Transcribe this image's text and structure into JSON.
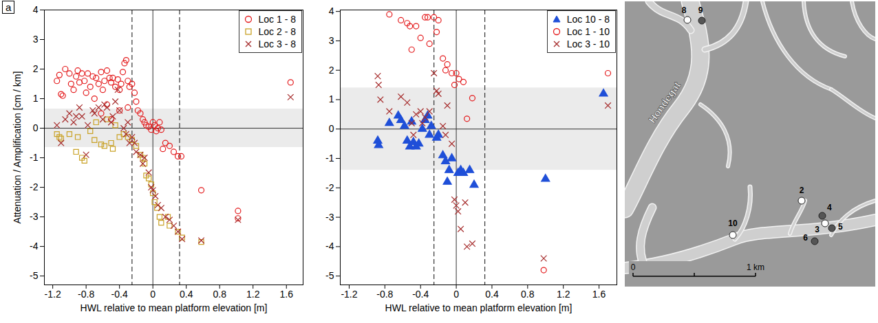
{
  "chart_data": [
    {
      "type": "scatter",
      "panel_label": "a",
      "x_label": "HWL relative to mean platform elevation [m]",
      "y_label": "Attenuation / Amplification [cm / km]",
      "xlim": [
        -1.3,
        1.8
      ],
      "xticks": [
        -1.2,
        -0.8,
        -0.4,
        0,
        0.4,
        0.8,
        1.2,
        1.6
      ],
      "ylim": [
        -5.3,
        4
      ],
      "yticks": [
        -5,
        -4,
        -3,
        -2,
        -1,
        0,
        1,
        2,
        3,
        4
      ],
      "band": [
        -0.65,
        0.65
      ],
      "vlines": [
        {
          "value": -0.25,
          "line_style": "dashed"
        },
        {
          "value": 0,
          "line_style": "solid"
        },
        {
          "value": 0.32,
          "line_style": "dashed"
        }
      ],
      "hlines": [
        {
          "value": 0,
          "line_style": "solid"
        }
      ],
      "legend": "top right",
      "series": [
        {
          "name": "Loc 1 - 8",
          "color": "#e41a1c",
          "marker": "open_circle",
          "values": [
            [
              -1.15,
              1.6
            ],
            [
              -1.12,
              1.8
            ],
            [
              -1.1,
              1.15
            ],
            [
              -1.08,
              1.1
            ],
            [
              -1.05,
              2.0
            ],
            [
              -1.0,
              1.85
            ],
            [
              -0.98,
              1.5
            ],
            [
              -0.95,
              1.3
            ],
            [
              -0.92,
              1.75
            ],
            [
              -0.9,
              1.95
            ],
            [
              -0.88,
              1.55
            ],
            [
              -0.85,
              1.85
            ],
            [
              -0.82,
              1.6
            ],
            [
              -0.8,
              1.2
            ],
            [
              -0.78,
              1.85
            ],
            [
              -0.75,
              1.4
            ],
            [
              -0.72,
              1.75
            ],
            [
              -0.7,
              1.0
            ],
            [
              -0.68,
              1.7
            ],
            [
              -0.65,
              1.5
            ],
            [
              -0.62,
              1.9
            ],
            [
              -0.62,
              0.5
            ],
            [
              -0.6,
              1.3
            ],
            [
              -0.58,
              1.6
            ],
            [
              -0.55,
              1.95
            ],
            [
              -0.55,
              0.8
            ],
            [
              -0.52,
              1.7
            ],
            [
              -0.5,
              1.55
            ],
            [
              -0.5,
              0.3
            ],
            [
              -0.48,
              1.7
            ],
            [
              -0.45,
              1.4
            ],
            [
              -0.42,
              1.65
            ],
            [
              -0.4,
              1.3
            ],
            [
              -0.4,
              0.6
            ],
            [
              -0.38,
              1.5
            ],
            [
              -0.36,
              1.9
            ],
            [
              -0.34,
              2.2
            ],
            [
              -0.32,
              2.3
            ],
            [
              -0.3,
              1.6
            ],
            [
              -0.3,
              0.7
            ],
            [
              -0.28,
              1.4
            ],
            [
              -0.25,
              1.5
            ],
            [
              -0.22,
              1.2
            ],
            [
              -0.2,
              0.9
            ],
            [
              -0.18,
              0.6
            ],
            [
              -0.15,
              0.5
            ],
            [
              -0.12,
              0.3
            ],
            [
              -0.1,
              0.2
            ],
            [
              -0.08,
              0.1
            ],
            [
              -0.05,
              0.05
            ],
            [
              -0.02,
              -0.05
            ],
            [
              0,
              0.2
            ],
            [
              0.02,
              0.1
            ],
            [
              0.04,
              -0.1
            ],
            [
              0.06,
              0.0
            ],
            [
              0.08,
              0.2
            ],
            [
              0.1,
              -0.05
            ],
            [
              0.12,
              -0.7
            ],
            [
              0.15,
              -0.5
            ],
            [
              0.2,
              -0.6
            ],
            [
              0.25,
              -0.8
            ],
            [
              0.3,
              -0.95
            ],
            [
              0.34,
              -0.95
            ],
            [
              0.58,
              -2.1
            ],
            [
              1.02,
              -2.8
            ],
            [
              1.02,
              -3.05
            ],
            [
              1.65,
              1.55
            ]
          ]
        },
        {
          "name": "Loc 2 - 8",
          "color": "#c9a227",
          "marker": "open_square",
          "values": [
            [
              -1.15,
              -0.2
            ],
            [
              -1.12,
              -0.3
            ],
            [
              -1.1,
              -0.35
            ],
            [
              -1.0,
              -0.2
            ],
            [
              -0.92,
              -0.8
            ],
            [
              -0.9,
              -0.3
            ],
            [
              -0.85,
              -1.0
            ],
            [
              -0.82,
              -1.1
            ],
            [
              -0.75,
              -0.1
            ],
            [
              -0.7,
              -0.4
            ],
            [
              -0.68,
              0.2
            ],
            [
              -0.62,
              -0.55
            ],
            [
              -0.58,
              -0.6
            ],
            [
              -0.55,
              0.3
            ],
            [
              -0.5,
              -0.5
            ],
            [
              -0.48,
              -0.7
            ],
            [
              -0.45,
              0.1
            ],
            [
              -0.4,
              -0.3
            ],
            [
              -0.35,
              -0.2
            ],
            [
              -0.3,
              -0.3
            ],
            [
              -0.25,
              -0.4
            ],
            [
              -0.2,
              -0.6
            ],
            [
              -0.15,
              -0.9
            ],
            [
              -0.12,
              -1.0
            ],
            [
              -0.1,
              -1.2
            ],
            [
              -0.08,
              -1.6
            ],
            [
              -0.05,
              -1.7
            ],
            [
              -0.02,
              -1.9
            ],
            [
              0,
              -2.2
            ],
            [
              0.02,
              -2.5
            ],
            [
              0.05,
              -2.7
            ],
            [
              0.08,
              -3.0
            ],
            [
              0.1,
              -3.2
            ],
            [
              0.18,
              -3.0
            ],
            [
              0.2,
              -3.3
            ],
            [
              0.3,
              -3.5
            ],
            [
              0.35,
              -3.7
            ],
            [
              0.58,
              -3.85
            ]
          ]
        },
        {
          "name": "Loc 3 - 8",
          "color": "#a52a2a",
          "marker": "x",
          "values": [
            [
              -1.15,
              0.1
            ],
            [
              -1.1,
              -0.5
            ],
            [
              -1.05,
              0.3
            ],
            [
              -1.0,
              0.5
            ],
            [
              -0.95,
              0.2
            ],
            [
              -0.92,
              0.4
            ],
            [
              -0.88,
              0.7
            ],
            [
              -0.85,
              0.4
            ],
            [
              -0.8,
              -0.9
            ],
            [
              -0.78,
              0.1
            ],
            [
              -0.72,
              0.6
            ],
            [
              -0.7,
              0.5
            ],
            [
              -0.65,
              0.7
            ],
            [
              -0.6,
              0.3
            ],
            [
              -0.58,
              0.8
            ],
            [
              -0.55,
              0.7
            ],
            [
              -0.5,
              0.2
            ],
            [
              -0.48,
              0.4
            ],
            [
              -0.45,
              0.9
            ],
            [
              -0.42,
              1.3
            ],
            [
              -0.4,
              0.6
            ],
            [
              -0.35,
              0.0
            ],
            [
              -0.32,
              -0.2
            ],
            [
              -0.3,
              0.2
            ],
            [
              -0.28,
              -0.5
            ],
            [
              -0.25,
              -0.3
            ],
            [
              -0.22,
              -0.5
            ],
            [
              -0.2,
              -0.8
            ],
            [
              -0.15,
              -0.9
            ],
            [
              -0.12,
              -1.2
            ],
            [
              -0.1,
              -1.0
            ],
            [
              -0.05,
              -1.5
            ],
            [
              -0.02,
              -2.0
            ],
            [
              0,
              -2.1
            ],
            [
              0.03,
              -2.3
            ],
            [
              0.06,
              -2.6
            ],
            [
              0.1,
              -2.7
            ],
            [
              0.15,
              -3.0
            ],
            [
              0.2,
              -3.1
            ],
            [
              0.25,
              -3.3
            ],
            [
              0.3,
              -3.5
            ],
            [
              0.35,
              -3.75
            ],
            [
              0.58,
              -3.8
            ],
            [
              1.02,
              -3.1
            ],
            [
              1.65,
              1.05
            ]
          ]
        }
      ]
    },
    {
      "type": "scatter",
      "x_label": "HWL relative to mean platform elevation [m]",
      "xlim": [
        -1.3,
        1.8
      ],
      "xticks": [
        -1.2,
        -0.8,
        -0.4,
        0,
        0.4,
        0.8,
        1.2,
        1.6
      ],
      "ylim": [
        -5.3,
        4.05
      ],
      "yticks": [
        -5,
        -4,
        -3,
        -2,
        -1,
        0,
        1,
        2,
        3,
        4
      ],
      "band": [
        -1.4,
        1.4
      ],
      "vlines": [
        {
          "value": -0.25,
          "line_style": "dashed"
        },
        {
          "value": 0,
          "line_style": "solid"
        },
        {
          "value": 0.32,
          "line_style": "dashed"
        }
      ],
      "hlines": [
        {
          "value": 0,
          "line_style": "solid"
        }
      ],
      "legend": "top right",
      "series": [
        {
          "name": "Loc 10 - 8",
          "color": "#1f4fd8",
          "marker": "filled_triangle",
          "values": [
            [
              -0.88,
              -0.4
            ],
            [
              -0.87,
              -0.55
            ],
            [
              -0.75,
              0.2
            ],
            [
              -0.65,
              0.45
            ],
            [
              -0.62,
              0.3
            ],
            [
              -0.58,
              0.1
            ],
            [
              -0.55,
              -0.4
            ],
            [
              -0.52,
              -0.6
            ],
            [
              -0.5,
              0.25
            ],
            [
              -0.48,
              -0.45
            ],
            [
              -0.45,
              -0.6
            ],
            [
              -0.42,
              -0.5
            ],
            [
              -0.38,
              0.0
            ],
            [
              -0.35,
              0.3
            ],
            [
              -0.32,
              0.45
            ],
            [
              -0.3,
              -0.2
            ],
            [
              -0.28,
              0.1
            ],
            [
              -0.22,
              -0.3
            ],
            [
              -0.2,
              -0.2
            ],
            [
              -0.15,
              -0.9
            ],
            [
              -0.12,
              -1.1
            ],
            [
              -0.1,
              -1.8
            ],
            [
              -0.08,
              -1.4
            ],
            [
              -0.05,
              -1.0
            ],
            [
              0.02,
              -1.5
            ],
            [
              0.05,
              -1.4
            ],
            [
              0.08,
              -1.5
            ],
            [
              0.15,
              -1.4
            ],
            [
              0.2,
              -1.9
            ],
            [
              1.0,
              -1.7
            ],
            [
              1.65,
              1.2
            ]
          ]
        },
        {
          "name": "Loc 1 - 10",
          "color": "#e41a1c",
          "marker": "open_circle",
          "values": [
            [
              -0.75,
              3.9
            ],
            [
              -0.62,
              3.7
            ],
            [
              -0.55,
              3.6
            ],
            [
              -0.52,
              3.5
            ],
            [
              -0.5,
              2.7
            ],
            [
              -0.45,
              3.5
            ],
            [
              -0.4,
              3.1
            ],
            [
              -0.35,
              3.8
            ],
            [
              -0.32,
              3.8
            ],
            [
              -0.3,
              2.9
            ],
            [
              -0.25,
              3.8
            ],
            [
              -0.22,
              3.3
            ],
            [
              -0.2,
              3.7
            ],
            [
              -0.15,
              2.4
            ],
            [
              -0.12,
              2.0
            ],
            [
              -0.1,
              2.2
            ],
            [
              -0.05,
              1.9
            ],
            [
              -0.02,
              1.5
            ],
            [
              0,
              1.9
            ],
            [
              0.03,
              1.7
            ],
            [
              0.08,
              1.6
            ],
            [
              0.12,
              0.35
            ],
            [
              0.18,
              1.05
            ],
            [
              0.98,
              -4.8
            ],
            [
              1.7,
              1.9
            ]
          ]
        },
        {
          "name": "Loc 3 - 10",
          "color": "#a52a2a",
          "marker": "x",
          "values": [
            [
              -0.88,
              1.8
            ],
            [
              -0.87,
              1.5
            ],
            [
              -0.85,
              1.0
            ],
            [
              -0.75,
              0.6
            ],
            [
              -0.62,
              1.1
            ],
            [
              -0.55,
              0.9
            ],
            [
              -0.5,
              0.2
            ],
            [
              -0.48,
              -0.2
            ],
            [
              -0.45,
              0.5
            ],
            [
              -0.4,
              0.6
            ],
            [
              -0.38,
              0.2
            ],
            [
              -0.35,
              0.4
            ],
            [
              -0.3,
              0.6
            ],
            [
              -0.25,
              1.9
            ],
            [
              -0.22,
              1.3
            ],
            [
              -0.2,
              1.2
            ],
            [
              -0.15,
              0.1
            ],
            [
              -0.12,
              -0.2
            ],
            [
              -0.1,
              0.8
            ],
            [
              -0.05,
              -0.5
            ],
            [
              -0.02,
              -2.4
            ],
            [
              0,
              -2.6
            ],
            [
              0.02,
              -2.8
            ],
            [
              0.05,
              -3.4
            ],
            [
              0.1,
              -2.5
            ],
            [
              0.12,
              -4.0
            ],
            [
              0.18,
              -3.9
            ],
            [
              0.98,
              -4.4
            ],
            [
              1.7,
              0.8
            ]
          ]
        }
      ]
    }
  ],
  "map": {
    "channel_label": "Hondegat",
    "scale_bar_labels": [
      "0",
      "1 km"
    ],
    "stations": [
      {
        "label": "8",
        "color": "#ffffff"
      },
      {
        "label": "9",
        "color": "#555555"
      },
      {
        "label": "2",
        "color": "#ffffff"
      },
      {
        "label": "4",
        "color": "#555555"
      },
      {
        "label": "3",
        "color": "#ffffff"
      },
      {
        "label": "5",
        "color": "#555555"
      },
      {
        "label": "6",
        "color": "#555555"
      },
      {
        "label": "10",
        "color": "#ffffff"
      }
    ]
  }
}
